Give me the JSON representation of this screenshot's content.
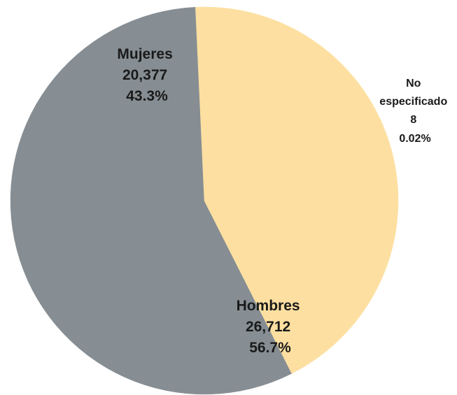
{
  "chart_data": {
    "type": "pie",
    "title": "",
    "start_angle_deg": 63.2,
    "slices": [
      {
        "name": "Hombres",
        "value": 26712,
        "value_label": "26,712",
        "percent_label": "56.7%",
        "color": "#868E93"
      },
      {
        "name": "Mujeres",
        "value": 20377,
        "value_label": "20,377",
        "percent_label": "43.3%",
        "color": "#FDE0A1"
      },
      {
        "name": "No especificado",
        "name_lines": [
          "No",
          "especificado"
        ],
        "value": 8,
        "value_label": "8",
        "percent_label": "0.02%",
        "color": "#FDE0A1"
      }
    ]
  }
}
